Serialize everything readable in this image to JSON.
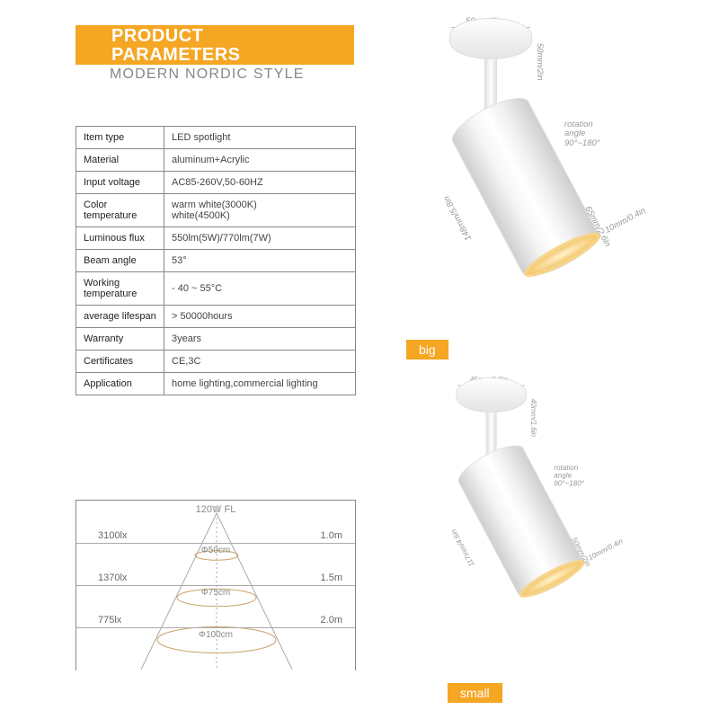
{
  "header": {
    "title_line1": "PRODUCT",
    "title_line2": "PARAMETERS",
    "subtitle": "MODERN NORDIC STYLE",
    "bar_color": "#f5a623",
    "sub_color": "#888888"
  },
  "spec_table": {
    "border_color": "#888888",
    "font_size": 11,
    "rows": [
      {
        "label": "Item type",
        "value": "LED spotlight"
      },
      {
        "label": "Material",
        "value": "aluminum+Acrylic"
      },
      {
        "label": "Input voltage",
        "value": "AC85-260V,50-60HZ"
      },
      {
        "label": "Color temperature",
        "value": "warm white(3000K)\nwhite(4500K)"
      },
      {
        "label": "Luminous flux",
        "value": "550lm(5W)/770lm(7W)"
      },
      {
        "label": "Beam angle",
        "value": "53°"
      },
      {
        "label": "Working temperature",
        "value": "- 40 ~ 55°C"
      },
      {
        "label": "average lifespan",
        "value": "> 50000hours"
      },
      {
        "label": "Warranty",
        "value": "3years"
      },
      {
        "label": "Certificates",
        "value": "CE,3C"
      },
      {
        "label": "Application",
        "value": "home lighting,commercial lighting"
      }
    ]
  },
  "cone": {
    "top_label": "120W  FL",
    "rows": [
      {
        "lx": "3100lx",
        "dist": "1.0m",
        "diam": "Φ50cm",
        "half_w": 24
      },
      {
        "lx": "1370lx",
        "dist": "1.5m",
        "diam": "Φ75cm",
        "half_w": 44
      },
      {
        "lx": "775lx",
        "dist": "2.0m",
        "diam": "Φ100cm",
        "half_w": 66
      }
    ],
    "line_color": "#aaaaaa",
    "ellipse_color": "#c9a36a"
  },
  "products": {
    "big": {
      "tag": "big",
      "dims": {
        "mount_w": "50mm/2in",
        "mount_h": "50mm/2in",
        "barrel_len": "148mm/5.8in",
        "barrel_diam": "65mm/2.6in",
        "lip": "10mm/0.4in",
        "rotation": "rotation angle\n90°~180°"
      }
    },
    "small": {
      "tag": "small",
      "dims": {
        "mount_w": "45mm/1.8in",
        "mount_h": "40mm/1.6in",
        "barrel_len": "117mm/4.6in",
        "barrel_diam": "50mm/2in",
        "lip": "10mm/0.4in",
        "rotation": "rotation angle\n90°~180°"
      }
    },
    "tag_bg": "#f5a623",
    "light_color": "#f0b64a"
  }
}
